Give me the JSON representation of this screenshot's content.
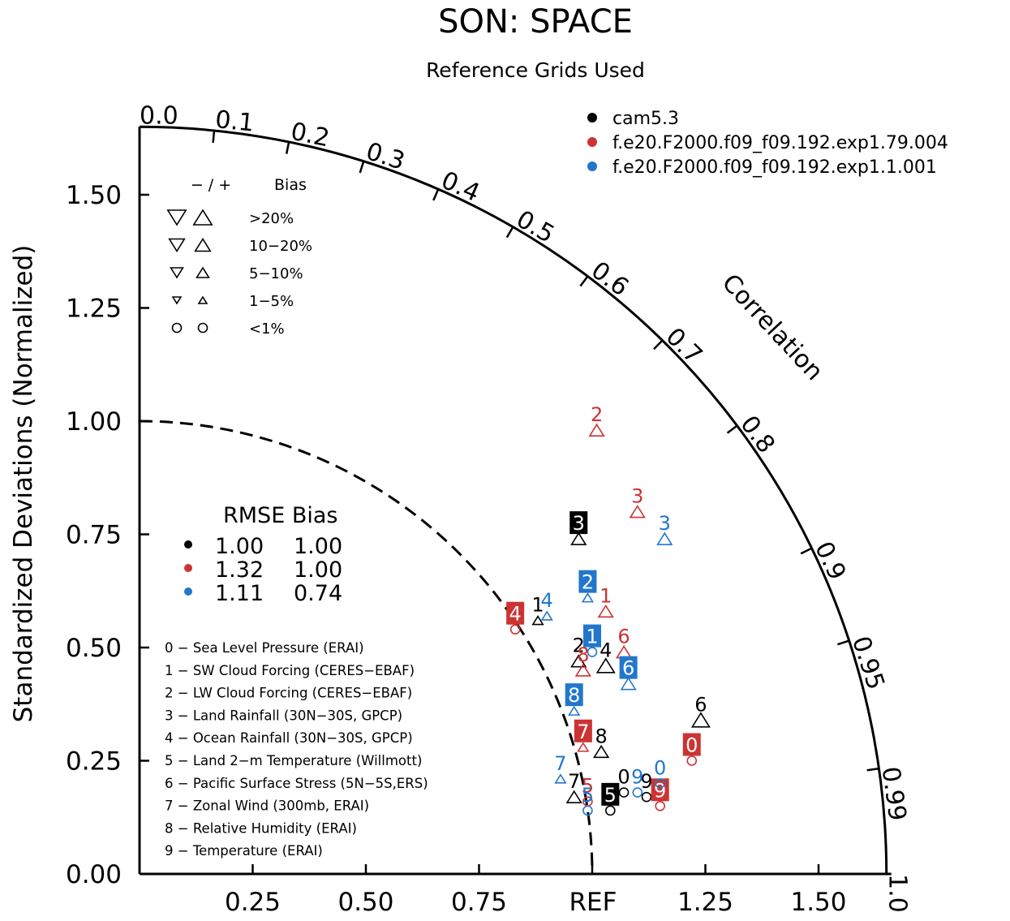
{
  "chart_data": {
    "type": "scatter",
    "title": "SON: SPACE",
    "subtitle": "Reference Grids Used",
    "ylabel": "Standardized Deviations (Normalized)",
    "arc_label": "Correlation",
    "ref_label": "REF",
    "xlim": [
      0,
      1.65
    ],
    "ylim": [
      0,
      1.65
    ],
    "x_ticks": [
      {
        "v": 0.25,
        "label": "0.25"
      },
      {
        "v": 0.5,
        "label": "0.50"
      },
      {
        "v": 0.75,
        "label": "0.75"
      },
      {
        "v": 1.25,
        "label": "1.25"
      },
      {
        "v": 1.5,
        "label": "1.50"
      }
    ],
    "y_ticks": [
      {
        "v": 0.0,
        "label": "0.00"
      },
      {
        "v": 0.25,
        "label": "0.25"
      },
      {
        "v": 0.5,
        "label": "0.50"
      },
      {
        "v": 0.75,
        "label": "0.75"
      },
      {
        "v": 1.0,
        "label": "1.00"
      },
      {
        "v": 1.25,
        "label": "1.25"
      },
      {
        "v": 1.5,
        "label": "1.50"
      }
    ],
    "correlation_ticks": [
      {
        "v": 0.0,
        "label": "0.0"
      },
      {
        "v": 0.1,
        "label": "0.1"
      },
      {
        "v": 0.2,
        "label": "0.2"
      },
      {
        "v": 0.3,
        "label": "0.3"
      },
      {
        "v": 0.4,
        "label": "0.4"
      },
      {
        "v": 0.5,
        "label": "0.5"
      },
      {
        "v": 0.6,
        "label": "0.6"
      },
      {
        "v": 0.7,
        "label": "0.7"
      },
      {
        "v": 0.8,
        "label": "0.8"
      },
      {
        "v": 0.9,
        "label": "0.9"
      },
      {
        "v": 0.95,
        "label": "0.95"
      },
      {
        "v": 0.99,
        "label": "0.99"
      },
      {
        "v": 1.0,
        "label": "1.0"
      }
    ],
    "series": [
      {
        "name": "cam5.3",
        "color": "#000000",
        "rmse": "1.00",
        "bias": "1.00",
        "points": [
          {
            "id": "0",
            "x": 1.07,
            "y": 0.18,
            "marker": "circle",
            "boxed": false
          },
          {
            "id": "1",
            "x": 0.88,
            "y": 0.56,
            "marker": "tri-up-small",
            "boxed": false
          },
          {
            "id": "2",
            "x": 0.97,
            "y": 0.47,
            "marker": "tri-up",
            "boxed": false
          },
          {
            "id": "3",
            "x": 0.97,
            "y": 0.74,
            "marker": "tri-up",
            "boxed": true
          },
          {
            "id": "4",
            "x": 1.03,
            "y": 0.46,
            "marker": "tri-up-large",
            "boxed": false
          },
          {
            "id": "5",
            "x": 1.04,
            "y": 0.14,
            "marker": "circle",
            "boxed": true
          },
          {
            "id": "6",
            "x": 1.24,
            "y": 0.34,
            "marker": "tri-up-large",
            "boxed": false
          },
          {
            "id": "7",
            "x": 0.96,
            "y": 0.17,
            "marker": "tri-up",
            "boxed": false
          },
          {
            "id": "8",
            "x": 1.02,
            "y": 0.27,
            "marker": "tri-up",
            "boxed": false
          },
          {
            "id": "9",
            "x": 1.12,
            "y": 0.17,
            "marker": "circle",
            "boxed": false
          }
        ]
      },
      {
        "name": "f.e20.F2000.f09_f09.192.exp1.79.004",
        "color": "#cc3333",
        "rmse": "1.32",
        "bias": "1.00",
        "points": [
          {
            "id": "0",
            "x": 1.22,
            "y": 0.25,
            "marker": "circle",
            "boxed": true
          },
          {
            "id": "1",
            "x": 1.03,
            "y": 0.58,
            "marker": "tri-up",
            "boxed": false
          },
          {
            "id": "2",
            "x": 1.01,
            "y": 0.98,
            "marker": "tri-up",
            "boxed": false
          },
          {
            "id": "3",
            "x": 1.1,
            "y": 0.8,
            "marker": "tri-up",
            "boxed": false
          },
          {
            "id": "4",
            "x": 0.83,
            "y": 0.54,
            "marker": "circle",
            "boxed": true
          },
          {
            "id": "5",
            "x": 0.99,
            "y": 0.16,
            "marker": "circle",
            "boxed": false
          },
          {
            "id": "6",
            "x": 1.07,
            "y": 0.49,
            "marker": "tri-up",
            "boxed": false
          },
          {
            "id": "7",
            "x": 0.98,
            "y": 0.28,
            "marker": "tri-up-small",
            "boxed": true
          },
          {
            "id": "8",
            "x": 0.98,
            "y": 0.45,
            "marker": "tri-up",
            "boxed": false
          },
          {
            "id": "9",
            "x": 1.15,
            "y": 0.15,
            "marker": "circle",
            "boxed": true
          }
        ]
      },
      {
        "name": "f.e20.F2000.f09_f09.192.exp1.1.001",
        "color": "#2277cc",
        "rmse": "1.11",
        "bias": "0.74",
        "points": [
          {
            "id": "0",
            "x": 1.15,
            "y": 0.2,
            "marker": "circle",
            "boxed": false
          },
          {
            "id": "1",
            "x": 1.0,
            "y": 0.49,
            "marker": "circle",
            "boxed": true
          },
          {
            "id": "2",
            "x": 0.99,
            "y": 0.61,
            "marker": "tri-up-small",
            "boxed": true
          },
          {
            "id": "3",
            "x": 1.16,
            "y": 0.74,
            "marker": "tri-up",
            "boxed": false
          },
          {
            "id": "4",
            "x": 0.9,
            "y": 0.57,
            "marker": "tri-up-small",
            "boxed": false
          },
          {
            "id": "5",
            "x": 0.99,
            "y": 0.14,
            "marker": "circle",
            "boxed": false
          },
          {
            "id": "6",
            "x": 1.08,
            "y": 0.42,
            "marker": "tri-up",
            "boxed": true
          },
          {
            "id": "7",
            "x": 0.93,
            "y": 0.21,
            "marker": "tri-up-small",
            "boxed": false
          },
          {
            "id": "8",
            "x": 0.96,
            "y": 0.36,
            "marker": "tri-up-small",
            "boxed": true
          },
          {
            "id": "9",
            "x": 1.1,
            "y": 0.18,
            "marker": "circle",
            "boxed": false
          }
        ]
      }
    ],
    "bias_legend": {
      "header_signs": "− / +",
      "header_label": "Bias",
      "rows": [
        {
          "label": ">20%",
          "size": "large"
        },
        {
          "label": "10−20%",
          "size": "medium"
        },
        {
          "label": "5−10%",
          "size": "small"
        },
        {
          "label": "1−5%",
          "size": "tiny"
        },
        {
          "label": "<1%",
          "size": "circle"
        }
      ]
    },
    "rmse_legend": {
      "header": "RMSE Bias"
    },
    "variables": [
      "0 − Sea Level Pressure (ERAI)",
      "1 − SW Cloud Forcing (CERES−EBAF)",
      "2 − LW Cloud Forcing (CERES−EBAF)",
      "3 − Land Rainfall (30N−30S, GPCP)",
      "4 − Ocean Rainfall (30N−30S, GPCP)",
      "5 − Land 2−m Temperature (Willmott)",
      "6 − Pacific Surface Stress (5N−5S,ERS)",
      "7 − Zonal Wind (300mb, ERAI)",
      "8 − Relative Humidity (ERAI)",
      "9 − Temperature (ERAI)"
    ]
  }
}
